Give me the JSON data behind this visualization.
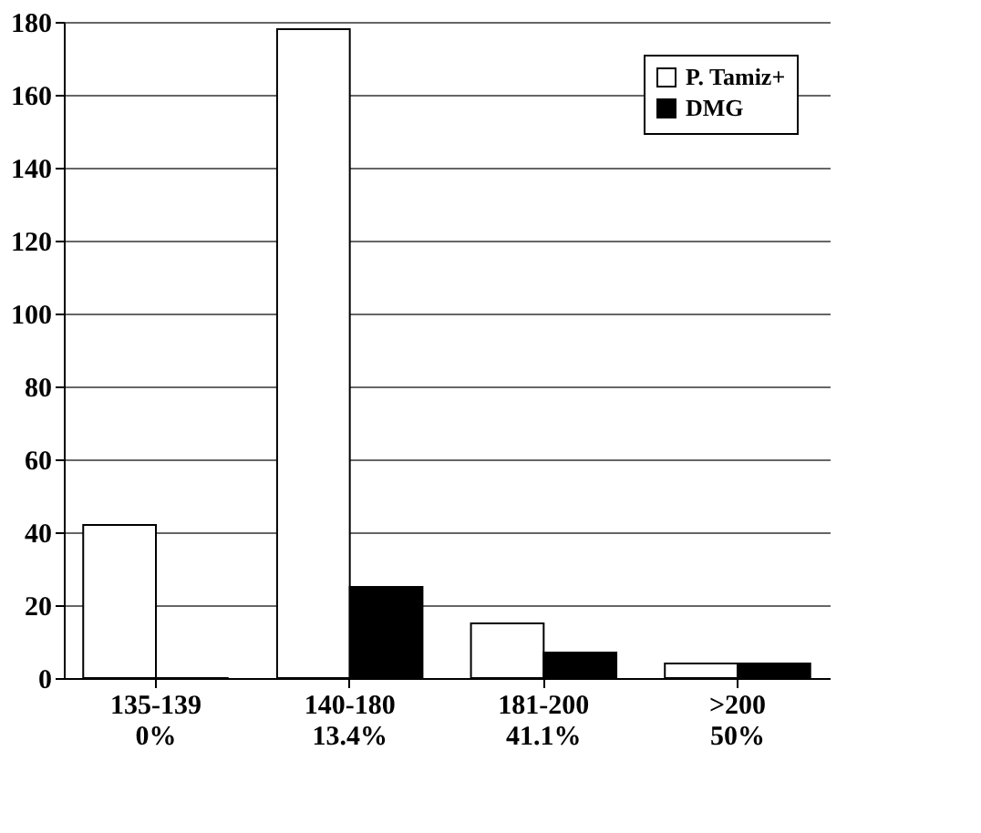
{
  "chart_data": {
    "type": "bar",
    "categories": [
      "135-139\n0%",
      "140-180\n13.4%",
      "181-200\n41.1%",
      ">200\n50%"
    ],
    "series": [
      {
        "name": "P. Tamiz+",
        "color": "#ffffff",
        "values": [
          42,
          178,
          15,
          4
        ]
      },
      {
        "name": "DMG",
        "color": "#000000",
        "values": [
          0,
          25,
          7,
          4
        ]
      }
    ],
    "ylim": [
      0,
      180
    ],
    "yticks": [
      0,
      20,
      40,
      60,
      80,
      100,
      120,
      140,
      160,
      180
    ],
    "grid": "y",
    "legend": "top right"
  }
}
